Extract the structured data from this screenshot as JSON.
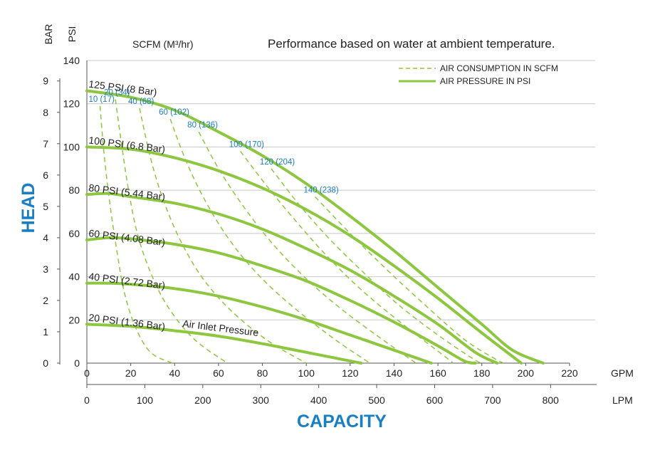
{
  "chart_data": {
    "type": "line",
    "title": "Performance based on water at ambient temperature.",
    "scfm_label": "SCFM (M³/hr)",
    "xlabel": "CAPACITY",
    "ylabel": "HEAD",
    "x_unit_gpm": "GPM",
    "x_unit_lpm": "LPM",
    "y_unit_bar": "BAR",
    "y_unit_psi": "PSI",
    "xlim": [
      0,
      220
    ],
    "ylim": [
      0,
      140
    ],
    "x_ticks_gpm": [
      "0",
      "20",
      "40",
      "60",
      "80",
      "100",
      "120",
      "140",
      "160",
      "180",
      "200",
      "220"
    ],
    "x_ticks_lpm": [
      "0",
      "100",
      "200",
      "300",
      "400",
      "500",
      "600",
      "700",
      "800"
    ],
    "y_ticks_psi": [
      "0",
      "20",
      "40",
      "60",
      "80",
      "100",
      "120",
      "140"
    ],
    "y_ticks_bar": [
      "0",
      "1",
      "2",
      "3",
      "4",
      "5",
      "6",
      "7",
      "8",
      "9"
    ],
    "legend": {
      "position": "top-right",
      "entries": [
        "AIR CONSUMPTION IN SCFM",
        "AIR PRESSURE IN PSI"
      ]
    },
    "air_pressure_series": [
      {
        "label": "125 PSI (8 Bar)",
        "points": [
          [
            0,
            126
          ],
          [
            20,
            123
          ],
          [
            40,
            117
          ],
          [
            60,
            107
          ],
          [
            80,
            96
          ],
          [
            100,
            83
          ],
          [
            120,
            68
          ],
          [
            140,
            52
          ],
          [
            160,
            35
          ],
          [
            180,
            18
          ],
          [
            194,
            6
          ],
          [
            208,
            0
          ]
        ]
      },
      {
        "label": "100 PSI (6.8 Bar)",
        "points": [
          [
            0,
            100
          ],
          [
            20,
            99
          ],
          [
            40,
            95
          ],
          [
            60,
            89
          ],
          [
            80,
            81
          ],
          [
            100,
            71
          ],
          [
            120,
            59
          ],
          [
            140,
            45
          ],
          [
            160,
            30
          ],
          [
            180,
            14
          ],
          [
            198,
            0
          ]
        ]
      },
      {
        "label": "80 PSI (5.44 Bar)",
        "points": [
          [
            0,
            78
          ],
          [
            10,
            78.5
          ],
          [
            20,
            77
          ],
          [
            40,
            74
          ],
          [
            60,
            69
          ],
          [
            80,
            62
          ],
          [
            100,
            53
          ],
          [
            120,
            43
          ],
          [
            140,
            31
          ],
          [
            160,
            18
          ],
          [
            177,
            5
          ],
          [
            187,
            0
          ]
        ]
      },
      {
        "label": "60 PSI (4.08 Bar)",
        "points": [
          [
            0,
            57
          ],
          [
            10,
            58
          ],
          [
            20,
            57.5
          ],
          [
            40,
            55
          ],
          [
            60,
            51
          ],
          [
            80,
            45
          ],
          [
            100,
            38
          ],
          [
            120,
            29
          ],
          [
            140,
            19
          ],
          [
            160,
            8
          ],
          [
            172,
            1
          ],
          [
            177,
            0
          ]
        ]
      },
      {
        "label": "40 PSI (2.72 Bar)",
        "points": [
          [
            0,
            37
          ],
          [
            10,
            37
          ],
          [
            20,
            36.5
          ],
          [
            40,
            34.5
          ],
          [
            60,
            31
          ],
          [
            80,
            26
          ],
          [
            100,
            20
          ],
          [
            120,
            13
          ],
          [
            140,
            6
          ],
          [
            157,
            0
          ]
        ]
      },
      {
        "label": "20 PSI (1.36 Bar)",
        "points": [
          [
            0,
            18
          ],
          [
            20,
            17
          ],
          [
            40,
            15
          ],
          [
            60,
            12.5
          ],
          [
            80,
            9
          ],
          [
            100,
            5
          ],
          [
            115,
            2
          ],
          [
            125,
            0
          ]
        ]
      }
    ],
    "air_inlet_label": "Air Inlet Pressure",
    "air_consumption_series": [
      {
        "label": "10 (17)",
        "points": [
          [
            6,
            119
          ],
          [
            8,
            95
          ],
          [
            11,
            70
          ],
          [
            14,
            50
          ],
          [
            17,
            33
          ],
          [
            22,
            17
          ],
          [
            29,
            5
          ],
          [
            39,
            0
          ]
        ]
      },
      {
        "label": "20 (34)",
        "points": [
          [
            13,
            122
          ],
          [
            16,
            100
          ],
          [
            19,
            80
          ],
          [
            23,
            60
          ],
          [
            29,
            42
          ],
          [
            37,
            26
          ],
          [
            49,
            11
          ],
          [
            64,
            0
          ]
        ]
      },
      {
        "label": "40 (68)",
        "points": [
          [
            24,
            118
          ],
          [
            29,
            95
          ],
          [
            35,
            75
          ],
          [
            43,
            56
          ],
          [
            53,
            39
          ],
          [
            66,
            24
          ],
          [
            83,
            10
          ],
          [
            100,
            0
          ]
        ]
      },
      {
        "label": "60 (102)",
        "points": [
          [
            38,
            113
          ],
          [
            45,
            94
          ],
          [
            54,
            75
          ],
          [
            65,
            57
          ],
          [
            78,
            41
          ],
          [
            94,
            26
          ],
          [
            113,
            11
          ],
          [
            129,
            0
          ]
        ]
      },
      {
        "label": "80 (136)",
        "points": [
          [
            51,
            107
          ],
          [
            60,
            90
          ],
          [
            71,
            73
          ],
          [
            84,
            56
          ],
          [
            99,
            40
          ],
          [
            116,
            25
          ],
          [
            136,
            10
          ],
          [
            150,
            0
          ]
        ]
      },
      {
        "label": "100 (170)",
        "points": [
          [
            70,
            98
          ],
          [
            82,
            82
          ],
          [
            95,
            66
          ],
          [
            109,
            50
          ],
          [
            125,
            34
          ],
          [
            144,
            18
          ],
          [
            162,
            4
          ],
          [
            167,
            0
          ]
        ]
      },
      {
        "label": "120 (204)",
        "points": [
          [
            84,
            90
          ],
          [
            97,
            73
          ],
          [
            111,
            57
          ],
          [
            126,
            42
          ],
          [
            142,
            27
          ],
          [
            160,
            13
          ],
          [
            176,
            2
          ],
          [
            180,
            0
          ]
        ]
      },
      {
        "label": "140 (238)",
        "points": [
          [
            104,
            77
          ],
          [
            120,
            60
          ],
          [
            137,
            43
          ],
          [
            154,
            27
          ],
          [
            172,
            11
          ],
          [
            186,
            2
          ],
          [
            190,
            0
          ]
        ]
      }
    ],
    "colors": {
      "curve": "#8dc63f",
      "axis": "#555555",
      "grid": "#c8c8c8",
      "accent": "#1a7fc2"
    },
    "grid": "horizontal"
  }
}
